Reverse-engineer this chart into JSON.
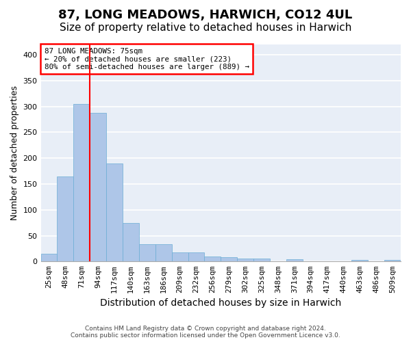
{
  "title": "87, LONG MEADOWS, HARWICH, CO12 4UL",
  "subtitle": "Size of property relative to detached houses in Harwich",
  "xlabel": "Distribution of detached houses by size in Harwich",
  "ylabel": "Number of detached properties",
  "footer_line1": "Contains HM Land Registry data © Crown copyright and database right 2024.",
  "footer_line2": "Contains public sector information licensed under the Open Government Licence v3.0.",
  "bins": [
    "25sqm",
    "48sqm",
    "71sqm",
    "94sqm",
    "117sqm",
    "140sqm",
    "163sqm",
    "186sqm",
    "209sqm",
    "232sqm",
    "256sqm",
    "279sqm",
    "302sqm",
    "325sqm",
    "348sqm",
    "371sqm",
    "394sqm",
    "417sqm",
    "440sqm",
    "463sqm",
    "486sqm",
    "509sqm"
  ],
  "values": [
    15,
    165,
    305,
    287,
    190,
    75,
    33,
    33,
    18,
    18,
    10,
    8,
    6,
    6,
    0,
    5,
    0,
    0,
    0,
    3,
    0,
    3
  ],
  "bar_color": "#aec6e8",
  "bar_edge_color": "#6aadd5",
  "vline_color": "red",
  "vline_pos": 2.5,
  "annotation_text": "87 LONG MEADOWS: 75sqm\n← 20% of detached houses are smaller (223)\n80% of semi-detached houses are larger (889) →",
  "annotation_box_color": "white",
  "annotation_box_edge_color": "red",
  "ylim": [
    0,
    420
  ],
  "yticks": [
    0,
    50,
    100,
    150,
    200,
    250,
    300,
    350,
    400
  ],
  "bg_color": "#e8eef7",
  "grid_color": "white",
  "title_fontsize": 13,
  "subtitle_fontsize": 11,
  "axis_fontsize": 9,
  "tick_fontsize": 8,
  "xlabel_fontsize": 10
}
